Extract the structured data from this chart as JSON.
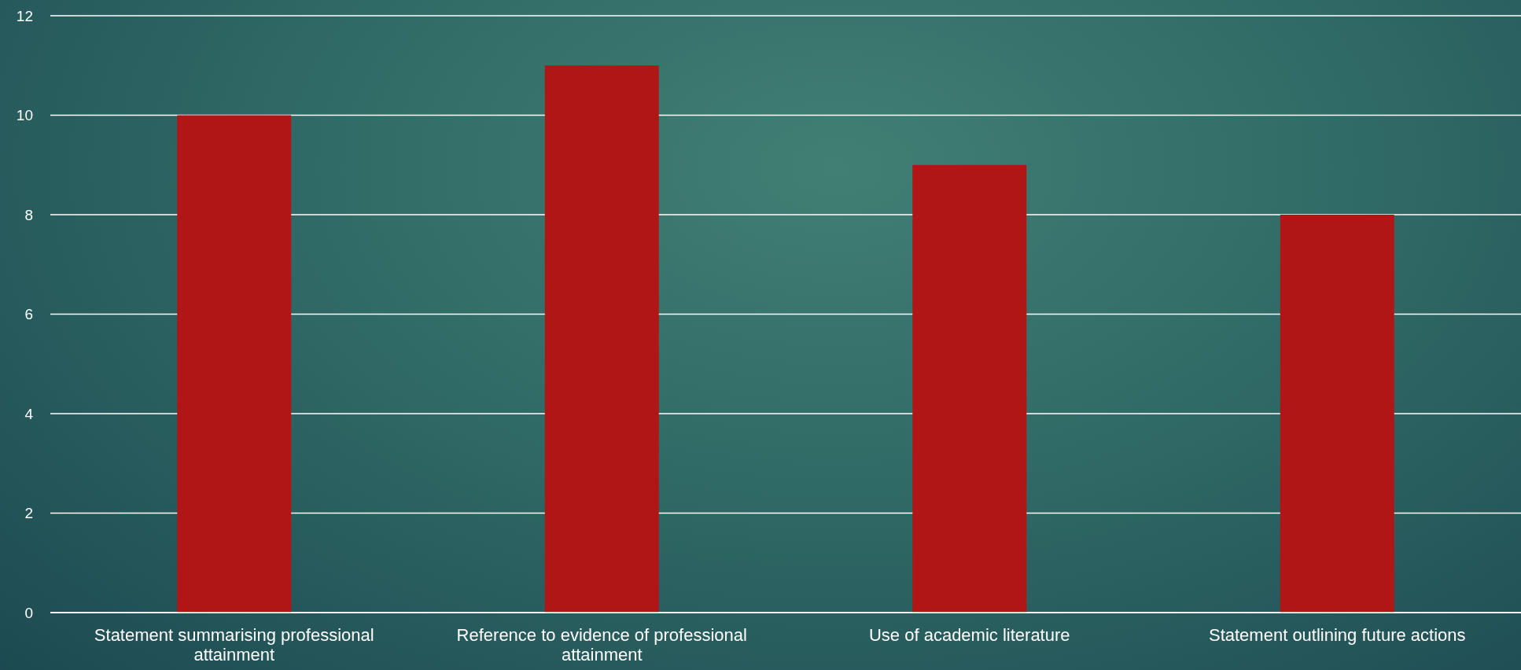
{
  "chart_data": {
    "type": "bar",
    "categories": [
      "Statement summarising professional attainment",
      "Reference to evidence of professional attainment",
      "Use of academic literature",
      "Statement outlining future actions"
    ],
    "values": [
      10,
      11,
      9,
      8
    ],
    "color": "#b01615",
    "ylim": [
      0,
      12
    ],
    "yticks": [
      0,
      2,
      4,
      6,
      8,
      10,
      12
    ],
    "grid": "y"
  }
}
